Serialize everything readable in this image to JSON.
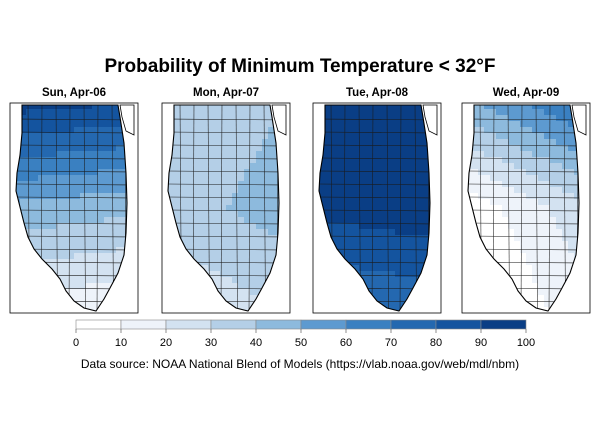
{
  "title": "Probability of Minimum Temperature < 32°F",
  "source": "Data source: NOAA National Blend of Models (https://vlab.noaa.gov/web/mdl/nbm)",
  "legend": {
    "ticks": [
      "0",
      "10",
      "20",
      "30",
      "40",
      "50",
      "60",
      "70",
      "80",
      "90",
      "100"
    ],
    "colors": [
      "#ffffff",
      "#eef3fa",
      "#d3e2f1",
      "#b4cfe7",
      "#8dbadd",
      "#5d9ad0",
      "#3a80c1",
      "#2468b0",
      "#14549f",
      "#0a3e85"
    ]
  },
  "panels": [
    {
      "label": "Sun, Apr-06",
      "north": 92,
      "central": 45,
      "south": 12,
      "east_bias": -5
    },
    {
      "label": "Mon, Apr-07",
      "north": 35,
      "central": 40,
      "south": 25,
      "east_bias": 10
    },
    {
      "label": "Tue, Apr-08",
      "north": 98,
      "central": 95,
      "south": 70,
      "east_bias": 5
    },
    {
      "label": "Wed, Apr-09",
      "north": 60,
      "central": 15,
      "south": 5,
      "east_bias": 25
    }
  ]
}
